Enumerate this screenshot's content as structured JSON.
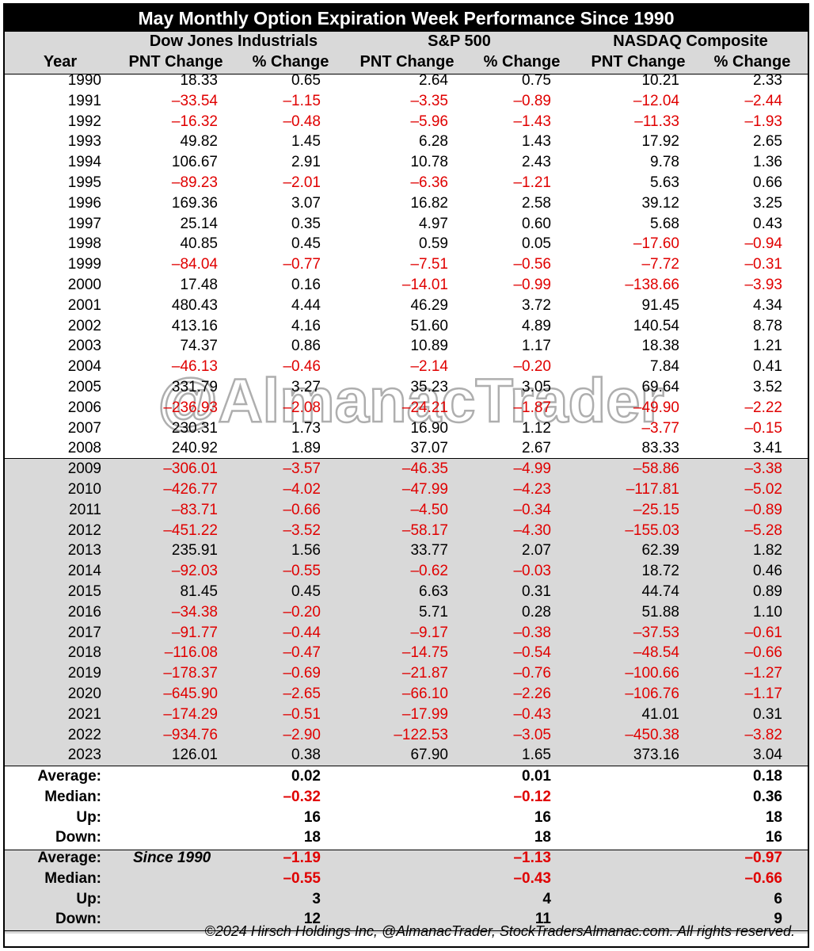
{
  "title": "May Monthly Option Expiration Week Performance Since 1990",
  "headers": {
    "year": "Year",
    "groups": [
      "Dow Jones Industrials",
      "S&P 500",
      "NASDAQ Composite"
    ],
    "sub": [
      "PNT Change",
      "% Change",
      "PNT Change",
      "% Change",
      "PNT Change",
      "% Change"
    ]
  },
  "rows": [
    [
      "1990",
      "18.33",
      "0.65",
      "2.64",
      "0.75",
      "10.21",
      "2.33"
    ],
    [
      "1991",
      "–33.54",
      "–1.15",
      "–3.35",
      "–0.89",
      "–12.04",
      "–2.44"
    ],
    [
      "1992",
      "–16.32",
      "–0.48",
      "–5.96",
      "–1.43",
      "–11.33",
      "–1.93"
    ],
    [
      "1993",
      "49.82",
      "1.45",
      "6.28",
      "1.43",
      "17.92",
      "2.65"
    ],
    [
      "1994",
      "106.67",
      "2.91",
      "10.78",
      "2.43",
      "9.78",
      "1.36"
    ],
    [
      "1995",
      "–89.23",
      "–2.01",
      "–6.36",
      "–1.21",
      "5.63",
      "0.66"
    ],
    [
      "1996",
      "169.36",
      "3.07",
      "16.82",
      "2.58",
      "39.12",
      "3.25"
    ],
    [
      "1997",
      "25.14",
      "0.35",
      "4.97",
      "0.60",
      "5.68",
      "0.43"
    ],
    [
      "1998",
      "40.85",
      "0.45",
      "0.59",
      "0.05",
      "–17.60",
      "–0.94"
    ],
    [
      "1999",
      "–84.04",
      "–0.77",
      "–7.51",
      "–0.56",
      "–7.72",
      "–0.31"
    ],
    [
      "2000",
      "17.48",
      "0.16",
      "–14.01",
      "–0.99",
      "–138.66",
      "–3.93"
    ],
    [
      "2001",
      "480.43",
      "4.44",
      "46.29",
      "3.72",
      "91.45",
      "4.34"
    ],
    [
      "2002",
      "413.16",
      "4.16",
      "51.60",
      "4.89",
      "140.54",
      "8.78"
    ],
    [
      "2003",
      "74.37",
      "0.86",
      "10.89",
      "1.17",
      "18.38",
      "1.21"
    ],
    [
      "2004",
      "–46.13",
      "–0.46",
      "–2.14",
      "–0.20",
      "7.84",
      "0.41"
    ],
    [
      "2005",
      "331.79",
      "3.27",
      "35.23",
      "3.05",
      "69.64",
      "3.52"
    ],
    [
      "2006",
      "–236.93",
      "–2.08",
      "–24.21",
      "–1.87",
      "–49.90",
      "–2.22"
    ],
    [
      "2007",
      "230.31",
      "1.73",
      "16.90",
      "1.12",
      "–3.77",
      "–0.15"
    ],
    [
      "2008",
      "240.92",
      "1.89",
      "37.07",
      "2.67",
      "83.33",
      "3.41"
    ],
    [
      "2009",
      "–306.01",
      "–3.57",
      "–46.35",
      "–4.99",
      "–58.86",
      "–3.38"
    ],
    [
      "2010",
      "–426.77",
      "–4.02",
      "–47.99",
      "–4.23",
      "–117.81",
      "–5.02"
    ],
    [
      "2011",
      "–83.71",
      "–0.66",
      "–4.50",
      "–0.34",
      "–25.15",
      "–0.89"
    ],
    [
      "2012",
      "–451.22",
      "–3.52",
      "–58.17",
      "–4.30",
      "–155.03",
      "–5.28"
    ],
    [
      "2013",
      "235.91",
      "1.56",
      "33.77",
      "2.07",
      "62.39",
      "1.82"
    ],
    [
      "2014",
      "–92.03",
      "–0.55",
      "–0.62",
      "–0.03",
      "18.72",
      "0.46"
    ],
    [
      "2015",
      "81.45",
      "0.45",
      "6.63",
      "0.31",
      "44.74",
      "0.89"
    ],
    [
      "2016",
      "–34.38",
      "–0.20",
      "5.71",
      "0.28",
      "51.88",
      "1.10"
    ],
    [
      "2017",
      "–91.77",
      "–0.44",
      "–9.17",
      "–0.38",
      "–37.53",
      "–0.61"
    ],
    [
      "2018",
      "–116.08",
      "–0.47",
      "–14.75",
      "–0.54",
      "–48.54",
      "–0.66"
    ],
    [
      "2019",
      "–178.37",
      "–0.69",
      "–21.87",
      "–0.76",
      "–100.66",
      "–1.27"
    ],
    [
      "2020",
      "–645.90",
      "–2.65",
      "–66.10",
      "–2.26",
      "–106.76",
      "–1.17"
    ],
    [
      "2021",
      "–174.29",
      "–0.51",
      "–17.99",
      "–0.43",
      "41.01",
      "0.31"
    ],
    [
      "2022",
      "–934.76",
      "–2.90",
      "–122.53",
      "–3.05",
      "–450.38",
      "–3.82"
    ],
    [
      "2023",
      "126.01",
      "0.38",
      "67.90",
      "1.65",
      "373.16",
      "3.04"
    ]
  ],
  "summary_all": [
    {
      "label": "Average:",
      "values": [
        "0.02",
        "0.01",
        "0.18"
      ]
    },
    {
      "label": "Median:",
      "values": [
        "–0.32",
        "–0.12",
        "0.36"
      ]
    },
    {
      "label": "Up:",
      "values": [
        "16",
        "16",
        "18"
      ]
    },
    {
      "label": "Down:",
      "values": [
        "18",
        "18",
        "16"
      ]
    }
  ],
  "summary_recent": {
    "note": "Since 1990",
    "rows": [
      {
        "label": "Average:",
        "values": [
          "–1.19",
          "–1.13",
          "–0.97"
        ]
      },
      {
        "label": "Median:",
        "values": [
          "–0.55",
          "–0.43",
          "–0.66"
        ]
      },
      {
        "label": "Up:",
        "values": [
          "3",
          "4",
          "6"
        ]
      },
      {
        "label": "Down:",
        "values": [
          "12",
          "11",
          "9"
        ]
      }
    ]
  },
  "footer": "©2024 Hirsch Holdings Inc, @AlmanacTrader, StockTradersAlmanac.com. All rights reserved.",
  "watermark": "@AlmanacTrader",
  "colors": {
    "negative": "#e00000",
    "band": "#d9d9d9",
    "title_bg": "#000000"
  }
}
